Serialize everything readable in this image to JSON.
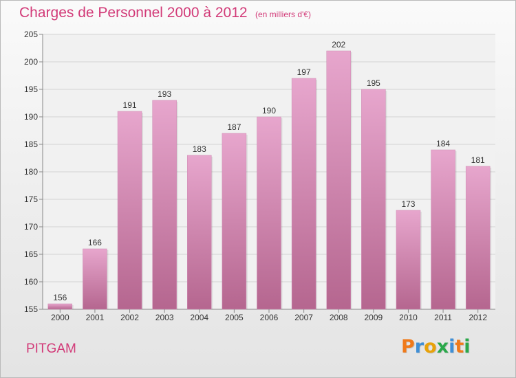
{
  "title": "Charges de Personnel 2000 à 2012",
  "subtitle": "(en milliers d'€)",
  "city": "PITGAM",
  "logo": {
    "letters": [
      "P",
      "r",
      "o",
      "x",
      "i",
      "t",
      "i"
    ],
    "colors": [
      "#f07a1a",
      "#3f8fd6",
      "#e8a20a",
      "#2aa84a",
      "#3f8fd6",
      "#f07a1a",
      "#2aa84a"
    ]
  },
  "colors": {
    "bar_top": "#e7a6cd",
    "bar_bottom": "#b5668f",
    "accent": "#d23a78"
  },
  "chart_data": {
    "type": "bar",
    "categories": [
      "2000",
      "2001",
      "2002",
      "2003",
      "2004",
      "2005",
      "2006",
      "2007",
      "2008",
      "2009",
      "2010",
      "2011",
      "2012"
    ],
    "values": [
      156,
      166,
      191,
      193,
      183,
      187,
      190,
      197,
      202,
      195,
      173,
      184,
      181
    ],
    "ylim": [
      155,
      205
    ],
    "yticks": [
      155,
      160,
      165,
      170,
      175,
      180,
      185,
      190,
      195,
      200,
      205
    ],
    "grid": true,
    "data_labels": true
  }
}
